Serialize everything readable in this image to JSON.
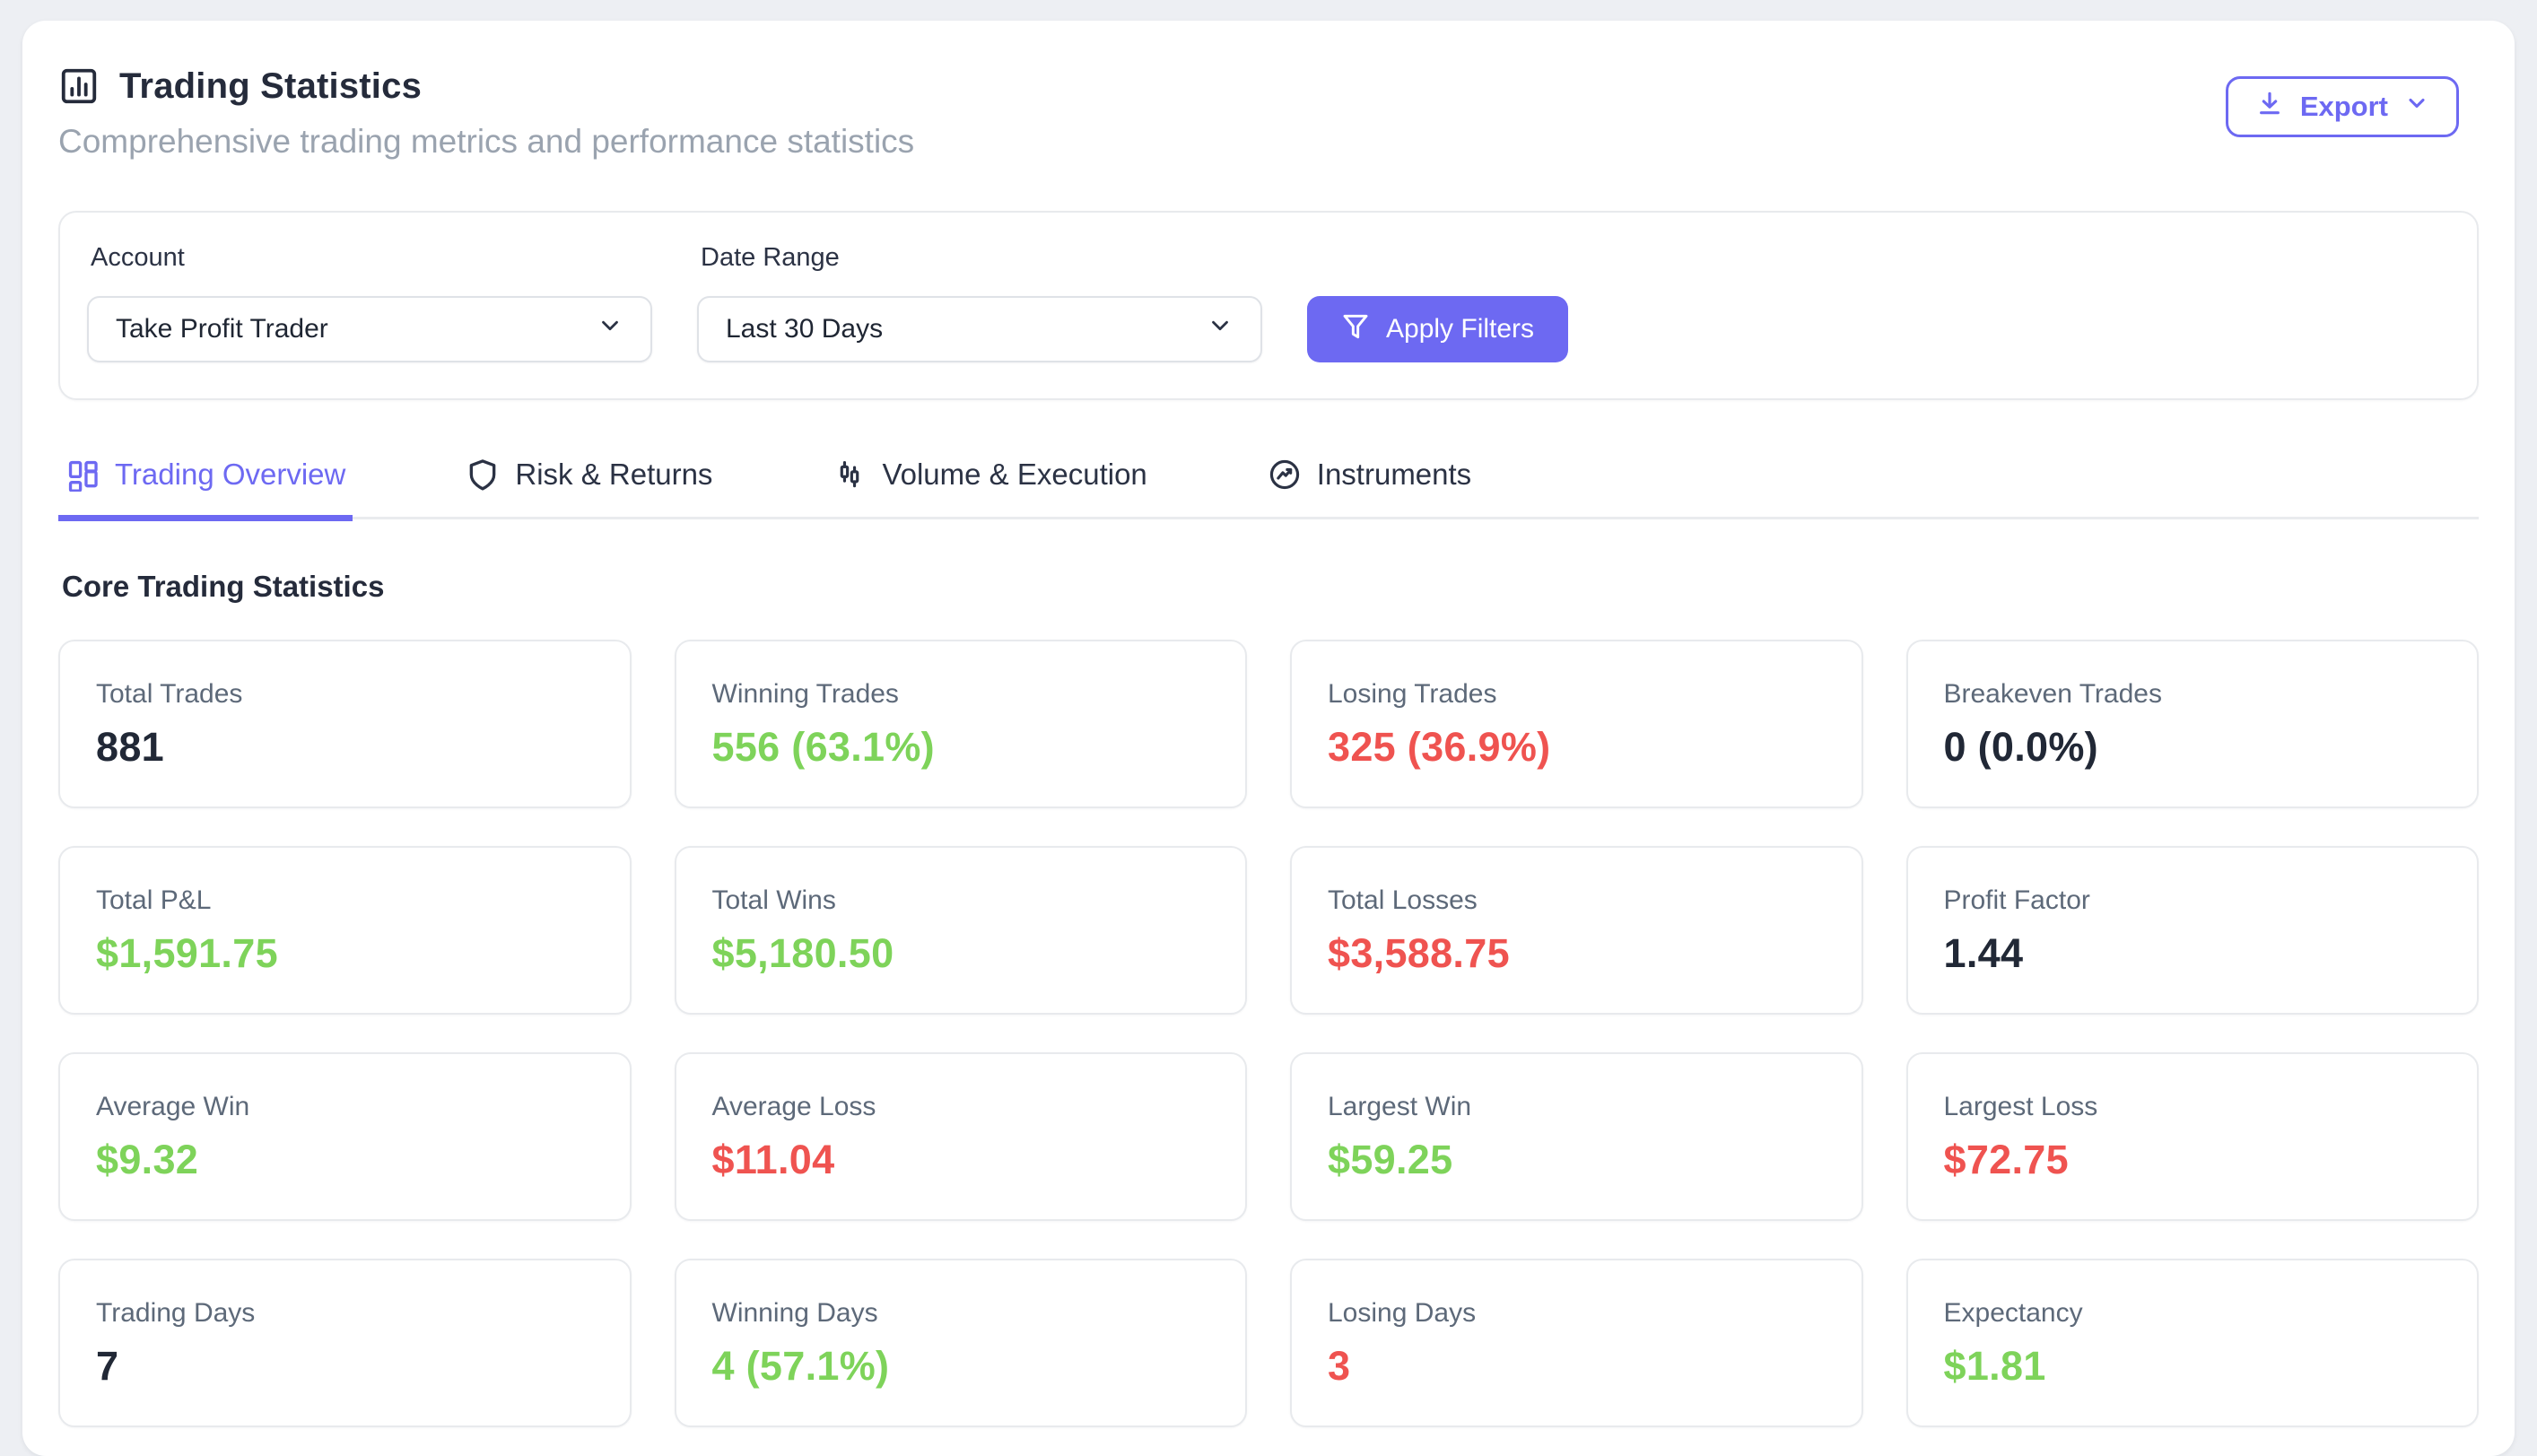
{
  "header": {
    "title": "Trading Statistics",
    "subtitle": "Comprehensive trading metrics and performance statistics",
    "export_label": "Export"
  },
  "filters": {
    "account": {
      "label": "Account",
      "value": "Take Profit Trader"
    },
    "date_range": {
      "label": "Date Range",
      "value": "Last 30 Days"
    },
    "apply_label": "Apply Filters"
  },
  "tabs": [
    {
      "label": "Trading Overview",
      "icon": "layout-dashboard-icon",
      "active": true
    },
    {
      "label": "Risk & Returns",
      "icon": "shield-icon",
      "active": false
    },
    {
      "label": "Volume & Execution",
      "icon": "candlestick-chart-icon",
      "active": false
    },
    {
      "label": "Instruments",
      "icon": "trending-up-circle-icon",
      "active": false
    }
  ],
  "section": {
    "heading": "Core Trading Statistics"
  },
  "stats": [
    {
      "label": "Total Trades",
      "value": "881",
      "color": "dark"
    },
    {
      "label": "Winning Trades",
      "value": "556 (63.1%)",
      "color": "green"
    },
    {
      "label": "Losing Trades",
      "value": "325 (36.9%)",
      "color": "red"
    },
    {
      "label": "Breakeven Trades",
      "value": "0 (0.0%)",
      "color": "dark"
    },
    {
      "label": "Total P&L",
      "value": "$1,591.75",
      "color": "green"
    },
    {
      "label": "Total Wins",
      "value": "$5,180.50",
      "color": "green"
    },
    {
      "label": "Total Losses",
      "value": "$3,588.75",
      "color": "red"
    },
    {
      "label": "Profit Factor",
      "value": "1.44",
      "color": "dark"
    },
    {
      "label": "Average Win",
      "value": "$9.32",
      "color": "green"
    },
    {
      "label": "Average Loss",
      "value": "$11.04",
      "color": "red"
    },
    {
      "label": "Largest Win",
      "value": "$59.25",
      "color": "green"
    },
    {
      "label": "Largest Loss",
      "value": "$72.75",
      "color": "red"
    },
    {
      "label": "Trading Days",
      "value": "7",
      "color": "dark"
    },
    {
      "label": "Winning Days",
      "value": "4 (57.1%)",
      "color": "green"
    },
    {
      "label": "Losing Days",
      "value": "3",
      "color": "red"
    },
    {
      "label": "Expectancy",
      "value": "$1.81",
      "color": "green"
    }
  ],
  "colors": {
    "accent": "#6d69f2",
    "green": "#7ed35a",
    "red": "#ef5350",
    "dark": "#212836"
  }
}
